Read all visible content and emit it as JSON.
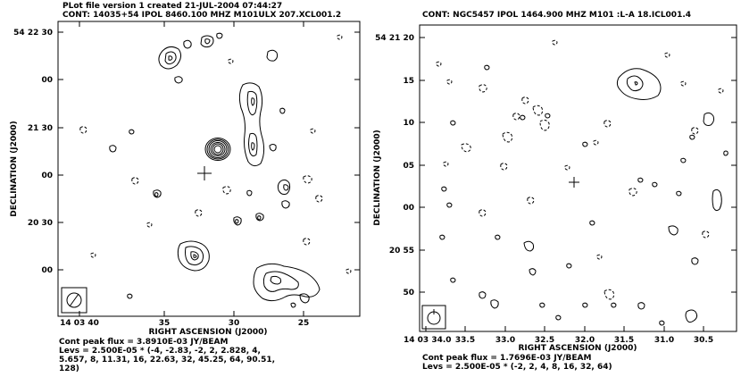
{
  "left": {
    "header_line1": "PLot file version 1  created 21-JUL-2004 07:44:27",
    "header_line2": "CONT: 14035+54  IPOL  8460.100 MHZ  M101ULX 207.XCL001.2",
    "y_ticks": [
      "54 22 30",
      "00",
      "21 30",
      "00",
      "20 30",
      "00"
    ],
    "x_ticks": [
      "14 03 40",
      "35",
      "30",
      "25"
    ],
    "xlabel": "RIGHT ASCENSION (J2000)",
    "ylabel": "DECLINATION (J2000)",
    "peak": "Cont peak flux =  3.8910E-03 JY/BEAM",
    "levs1": "Levs = 2.500E-05 * (-4, -2.83, -2, 2, 2.828, 4,",
    "levs2": "5.657, 8, 11.31, 16, 22.63, 32, 45.25, 64, 90.51,",
    "levs3": "128)"
  },
  "right": {
    "header_line1": "CONT: NGC5457  IPOL  1464.900 MHZ  M101 :L-A 18.ICL001.4",
    "y_ticks": [
      "54 21 20",
      "15",
      "10",
      "05",
      "00",
      "20 55",
      "50"
    ],
    "x_ticks": [
      "14 03 34.0",
      "33.5",
      "33.0",
      "32.5",
      "32.0",
      "31.5",
      "31.0",
      "30.5"
    ],
    "xlabel": "RIGHT ASCENSION (J2000)",
    "ylabel": "DECLINATION (J2000)",
    "peak": "Cont peak flux =  1.7696E-03 JY/BEAM",
    "levs1": "Levs = 2.500E-05 * (-2, 2, 4, 8, 16, 32, 64)"
  }
}
